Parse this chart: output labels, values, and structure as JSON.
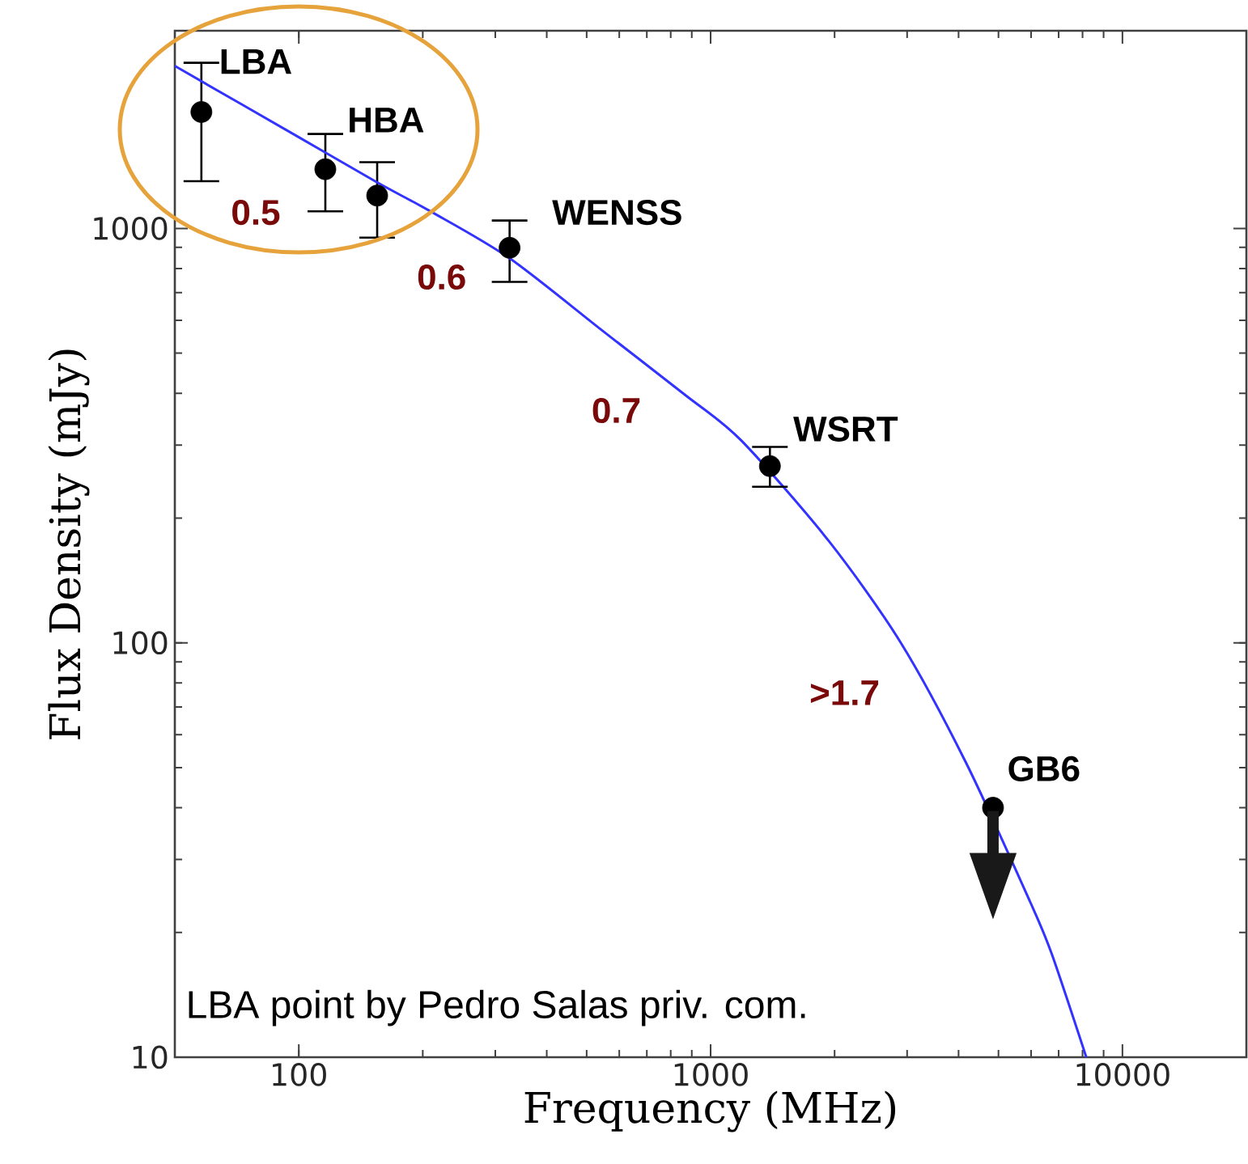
{
  "chart_data": {
    "type": "scatter",
    "xlabel": "Frequency (MHz)",
    "ylabel": "Flux Density (mJy)",
    "log": "xy",
    "xlim": [
      50,
      20000
    ],
    "ylim": [
      10,
      3000
    ],
    "xticks": [
      100,
      1000,
      10000
    ],
    "yticks": [
      10,
      100,
      1000
    ],
    "grid": false,
    "marker": "circle",
    "series": [
      {
        "color": "#000000",
        "x": [
          58,
          116,
          155,
          325,
          1393,
          4850
        ],
        "values": [
          1910,
          1390,
          1200,
          898,
          267,
          40
        ],
        "errors": [
          [
            1300,
            2510
          ],
          [
            1100,
            1690
          ],
          [
            950,
            1445
          ],
          [
            743,
            1045
          ],
          [
            238,
            297
          ],
          null
        ]
      },
      {
        "type": "line",
        "color": "#3333ff",
        "line_style": "solid",
        "marker": "none",
        "x": [
          50,
          100,
          155,
          209,
          325,
          548,
          866,
          1186,
          1937,
          2897,
          4169,
          5970,
          6730,
          8170
        ],
        "values": [
          2466,
          1660,
          1291,
          1099,
          847,
          565,
          397,
          308,
          176,
          100,
          51.4,
          23.7,
          17.8,
          10
        ]
      }
    ],
    "annotations": [
      "LBA",
      "HBA",
      "WENSS",
      "WSRT",
      "GB6",
      "0.5",
      "0.6",
      "0.7",
      ">1.7",
      "LBA point by Pedro Salas priv. com."
    ]
  }
}
